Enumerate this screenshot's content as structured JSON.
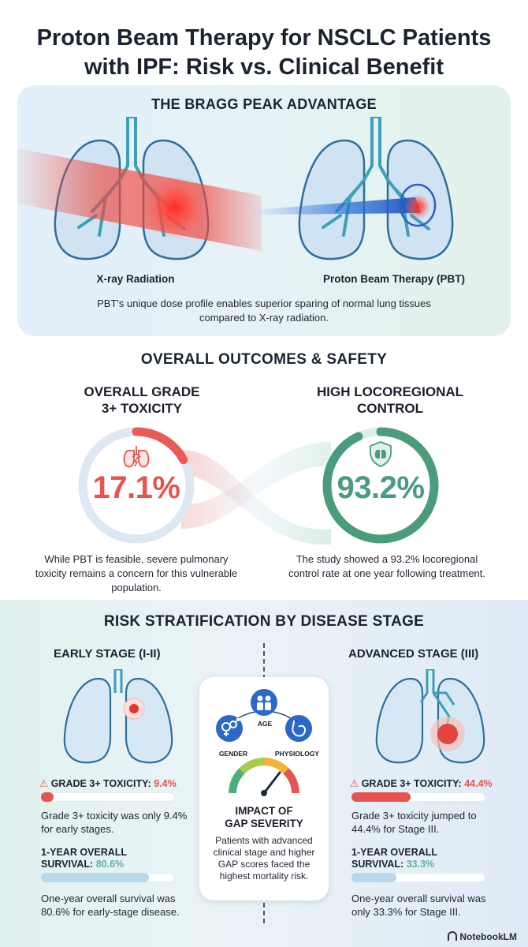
{
  "title": {
    "line1": "Proton Beam Therapy for NSCLC Patients",
    "line2": "with IPF: Risk vs. Clinical Benefit"
  },
  "bragg": {
    "heading": "THE BRAGG PEAK ADVANTAGE",
    "left_label": "X-ray Radiation",
    "right_label": "Proton Beam Therapy (PBT)",
    "caption": "PBT's unique dose profile enables superior sparing of normal lung tissues compared to X-ray radiation."
  },
  "outcomes": {
    "heading": "OVERALL OUTCOMES & SAFETY",
    "toxicity": {
      "title_line1": "OVERALL GRADE",
      "title_line2": "3+ TOXICITY",
      "value": "17.1%",
      "fraction": 0.171,
      "text": "While PBT is feasible, severe pulmonary toxicity remains a concern for this vulnerable population."
    },
    "control": {
      "title_line1": "HIGH LOCOREGIONAL",
      "title_line2": "CONTROL",
      "value": "93.2%",
      "fraction": 0.932,
      "text": "The study showed a 93.2% locoregional control rate at one year following treatment."
    }
  },
  "risk": {
    "heading": "RISK STRATIFICATION BY DISEASE STAGE",
    "early": {
      "title": "EARLY STAGE (I-II)",
      "tox_label": "GRADE 3+ TOXICITY:",
      "tox_value": "9.4%",
      "tox_fraction": 0.094,
      "tox_text": "Grade 3+ toxicity was only 9.4% for early stages.",
      "os_label_line1": "1-YEAR OVERALL",
      "os_label_line2": "SURVIVAL:",
      "os_value": "80.6%",
      "os_fraction": 0.806,
      "os_text": "One-year overall survival was 80.6% for early-stage disease."
    },
    "advanced": {
      "title": "ADVANCED STAGE (III)",
      "tox_label": "GRADE 3+ TOXICITY:",
      "tox_value": "44.4%",
      "tox_fraction": 0.444,
      "tox_text": "Grade 3+ toxicity jumped to 44.4% for Stage III.",
      "os_label_line1": "1-YEAR OVERALL",
      "os_label_line2": "SURVIVAL:",
      "os_value": "33.3%",
      "os_fraction": 0.333,
      "os_text": "One-year overall survival was only 33.3% for Stage III."
    },
    "gap": {
      "factor_age": "AGE",
      "factor_gender": "GENDER",
      "factor_physiology": "PHYSIOLOGY",
      "title_line1": "IMPACT OF",
      "title_line2": "GAP SEVERITY",
      "text": "Patients with advanced clinical stage and higher GAP scores faced the highest mortality risk."
    }
  },
  "footer": {
    "brand": "NotebookLM"
  },
  "colors": {
    "risk_red": "#e5544f",
    "control_green": "#4a9c7c",
    "lung_blue": "#8ebedf",
    "bronchi_teal": "#3f9fb5",
    "survival_green": "#5fb39a",
    "survival_blue": "#9cc7e4"
  },
  "icons": [
    "lungs-lightning-icon",
    "lung-shield-icon",
    "warning-icon",
    "age-people-icon",
    "gender-icon",
    "stomach-icon",
    "gauge-icon",
    "notebooklm-logo-icon"
  ]
}
